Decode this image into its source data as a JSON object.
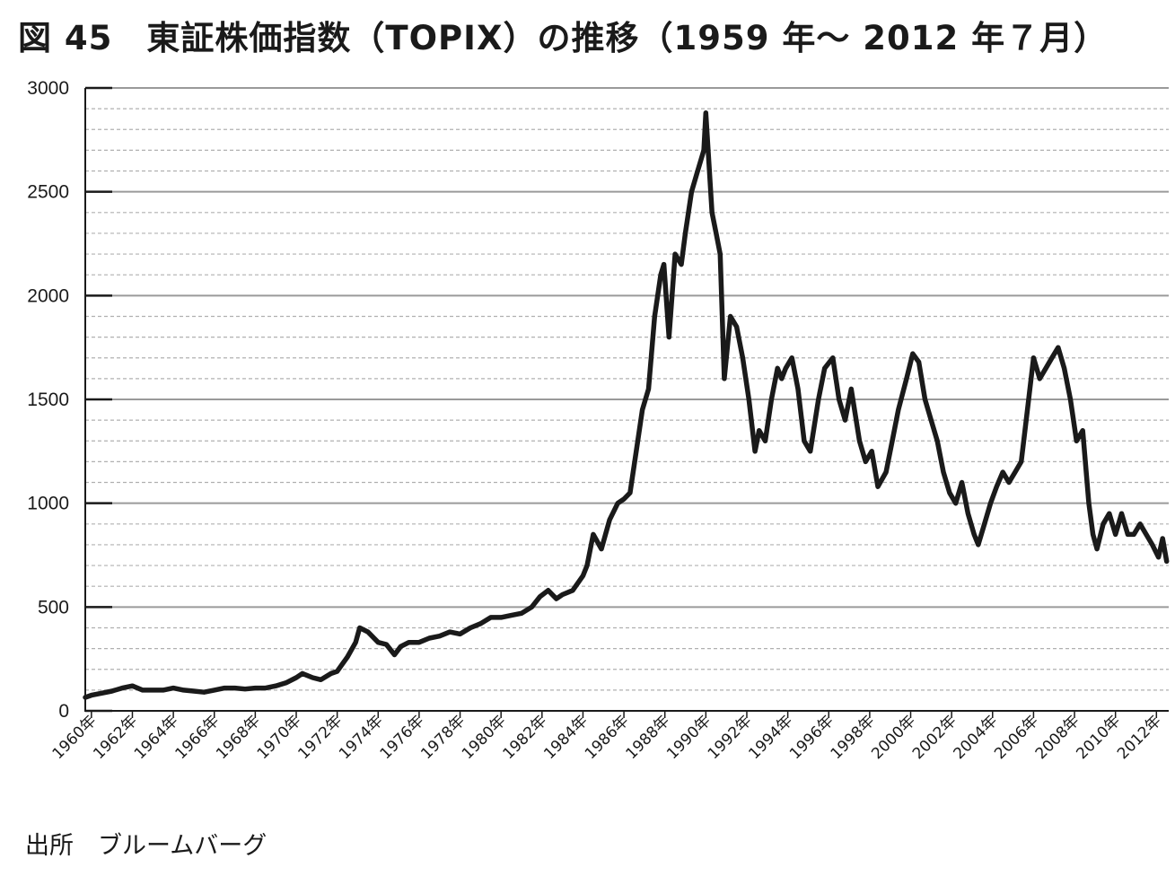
{
  "title": "図 45　東証株価指数（TOPIX）の推移（1959 年～ 2012 年７月）",
  "source": "出所　ブルームバーグ",
  "chart_data": {
    "type": "line",
    "ylim": [
      0,
      3000
    ],
    "xlim": [
      1959.7,
      2012.6
    ],
    "yticks": [
      0,
      500,
      1000,
      1500,
      2000,
      2500,
      3000
    ],
    "ytick_labels": [
      "0",
      "500",
      "1000",
      "1500",
      "2000",
      "2500",
      "3000"
    ],
    "xticks": [
      1960,
      1962,
      1964,
      1966,
      1968,
      1970,
      1972,
      1974,
      1976,
      1978,
      1980,
      1982,
      1984,
      1986,
      1988,
      1990,
      1992,
      1994,
      1996,
      1998,
      2000,
      2002,
      2004,
      2006,
      2008,
      2010,
      2012
    ],
    "xtick_labels": [
      "1960年",
      "1962年",
      "1964年",
      "1966年",
      "1968年",
      "1970年",
      "1972年",
      "1974年",
      "1976年",
      "1978年",
      "1980年",
      "1982年",
      "1984年",
      "1986年",
      "1988年",
      "1990年",
      "1992年",
      "1994年",
      "1996年",
      "1998年",
      "2000年",
      "2002年",
      "2004年",
      "2006年",
      "2008年",
      "2010年",
      "2012年"
    ],
    "major_grid_step": 500,
    "minor_grid_step": 100,
    "grid": true,
    "legend": "none",
    "line_color": "#1a1a1a",
    "series": [
      {
        "x": [
          1959.7,
          1960.0,
          1960.5,
          1961.0,
          1961.5,
          1962.0,
          1962.5,
          1963.0,
          1963.5,
          1964.0,
          1964.5,
          1965.0,
          1965.5,
          1966.0,
          1966.5,
          1967.0,
          1967.5,
          1968.0,
          1968.5,
          1969.0,
          1969.5,
          1970.0,
          1970.3,
          1970.8,
          1971.2,
          1971.7,
          1972.0,
          1972.5,
          1972.9,
          1973.1,
          1973.5,
          1974.0,
          1974.4,
          1974.8,
          1975.1,
          1975.5,
          1976.0,
          1976.5,
          1977.0,
          1977.5,
          1978.0,
          1978.5,
          1979.0,
          1979.5,
          1980.0,
          1980.5,
          1981.0,
          1981.5,
          1981.9,
          1982.3,
          1982.7,
          1983.0,
          1983.5,
          1984.0,
          1984.2,
          1984.5,
          1984.9,
          1985.3,
          1985.7,
          1986.0,
          1986.3,
          1986.6,
          1986.9,
          1987.2,
          1987.5,
          1987.8,
          1987.95,
          1988.2,
          1988.5,
          1988.8,
          1989.0,
          1989.3,
          1989.6,
          1989.9,
          1990.0,
          1990.3,
          1990.5,
          1990.7,
          1990.9,
          1991.2,
          1991.5,
          1991.8,
          1992.1,
          1992.4,
          1992.6,
          1992.9,
          1993.2,
          1993.5,
          1993.7,
          1993.9,
          1994.2,
          1994.5,
          1994.8,
          1995.1,
          1995.5,
          1995.8,
          1996.2,
          1996.5,
          1996.8,
          1997.1,
          1997.5,
          1997.8,
          1998.1,
          1998.4,
          1998.8,
          1999.1,
          1999.4,
          1999.8,
          2000.1,
          2000.4,
          2000.7,
          2001.0,
          2001.3,
          2001.6,
          2001.9,
          2002.2,
          2002.5,
          2002.8,
          2003.1,
          2003.3,
          2003.6,
          2003.9,
          2004.2,
          2004.5,
          2004.8,
          2005.1,
          2005.4,
          2005.7,
          2006.0,
          2006.3,
          2006.6,
          2006.9,
          2007.2,
          2007.5,
          2007.8,
          2008.1,
          2008.4,
          2008.7,
          2008.9,
          2009.1,
          2009.4,
          2009.7,
          2010.0,
          2010.3,
          2010.6,
          2010.9,
          2011.2,
          2011.5,
          2011.8,
          2012.1,
          2012.3,
          2012.5
        ],
        "y": [
          65,
          75,
          85,
          95,
          110,
          120,
          100,
          100,
          100,
          110,
          100,
          95,
          90,
          100,
          110,
          110,
          105,
          110,
          110,
          120,
          135,
          160,
          180,
          160,
          150,
          180,
          190,
          260,
          330,
          400,
          380,
          330,
          320,
          270,
          310,
          330,
          330,
          350,
          360,
          380,
          370,
          400,
          420,
          450,
          450,
          460,
          470,
          500,
          550,
          580,
          540,
          560,
          580,
          650,
          700,
          850,
          780,
          920,
          1000,
          1020,
          1050,
          1250,
          1450,
          1550,
          1900,
          2100,
          2150,
          1800,
          2200,
          2150,
          2300,
          2500,
          2600,
          2700,
          2880,
          2400,
          2300,
          2200,
          1600,
          1900,
          1850,
          1700,
          1500,
          1250,
          1350,
          1300,
          1500,
          1650,
          1600,
          1650,
          1700,
          1550,
          1300,
          1250,
          1500,
          1650,
          1700,
          1500,
          1400,
          1550,
          1300,
          1200,
          1250,
          1080,
          1150,
          1300,
          1450,
          1600,
          1720,
          1680,
          1500,
          1400,
          1300,
          1150,
          1050,
          1000,
          1100,
          950,
          850,
          800,
          900,
          1000,
          1080,
          1150,
          1100,
          1150,
          1200,
          1450,
          1700,
          1600,
          1650,
          1700,
          1750,
          1650,
          1500,
          1300,
          1350,
          1000,
          850,
          780,
          900,
          950,
          850,
          950,
          850,
          850,
          900,
          850,
          800,
          740,
          830,
          720
        ]
      }
    ]
  }
}
